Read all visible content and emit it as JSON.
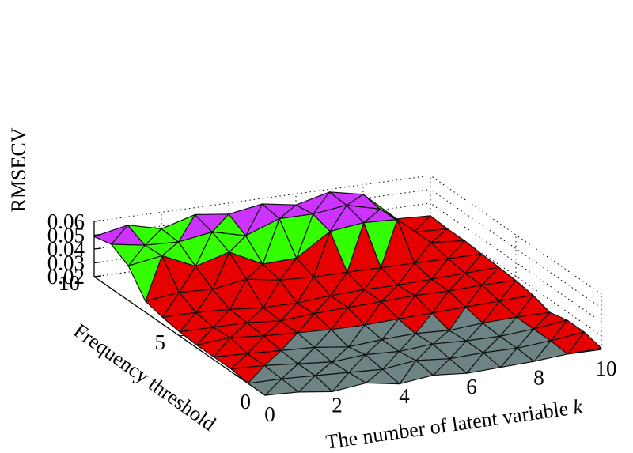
{
  "chart_data": {
    "type": "surface3d",
    "title": "",
    "xlabel": "The number of latent variable",
    "xlabel_var": "k",
    "ylabel": "Frequency threshold",
    "zlabel": "RMSECV",
    "x_ticks": [
      "0",
      "2",
      "4",
      "6",
      "8",
      "10"
    ],
    "y_ticks": [
      "0",
      "5",
      "10"
    ],
    "z_ticks": [
      "0.02",
      "0.03",
      "0.04",
      "0.05",
      "0.06"
    ],
    "x_range": [
      0,
      10
    ],
    "y_range": [
      0,
      10
    ],
    "z_range": [
      0.02,
      0.06
    ],
    "grid": true,
    "colors": {
      "face_above_low": "#e60000",
      "face_above_high": "#33ff00",
      "face_above_peak": "#cc33ff",
      "face_below": "#6e8484",
      "edge": "#111111"
    },
    "x": [
      0,
      1,
      2,
      3,
      4,
      5,
      6,
      7,
      8,
      9,
      10
    ],
    "y": [
      0,
      1,
      2,
      3,
      4,
      5,
      6,
      7,
      8,
      9,
      10
    ],
    "z": [
      [
        0.02,
        0.019,
        0.016,
        0.019,
        0.015,
        0.018,
        0.016,
        0.017,
        0.018,
        0.02,
        0.021
      ],
      [
        0.02,
        0.02,
        0.019,
        0.018,
        0.017,
        0.02,
        0.018,
        0.019,
        0.019,
        0.021,
        0.024
      ],
      [
        0.022,
        0.021,
        0.019,
        0.017,
        0.019,
        0.018,
        0.02,
        0.019,
        0.019,
        0.021,
        0.024
      ],
      [
        0.022,
        0.021,
        0.02,
        0.019,
        0.016,
        0.018,
        0.019,
        0.018,
        0.02,
        0.021,
        0.021
      ],
      [
        0.022,
        0.024,
        0.022,
        0.021,
        0.02,
        0.02,
        0.021,
        0.022,
        0.023,
        0.024,
        0.025
      ],
      [
        0.023,
        0.023,
        0.023,
        0.021,
        0.023,
        0.024,
        0.025,
        0.026,
        0.026,
        0.027,
        0.027
      ],
      [
        0.025,
        0.025,
        0.024,
        0.022,
        0.022,
        0.024,
        0.025,
        0.025,
        0.026,
        0.027,
        0.028
      ],
      [
        0.028,
        0.031,
        0.03,
        0.034,
        0.03,
        0.029,
        0.029,
        0.029,
        0.029,
        0.029,
        0.029
      ],
      [
        0.045,
        0.049,
        0.038,
        0.045,
        0.033,
        0.034,
        0.05,
        0.053,
        0.052,
        0.032,
        0.03
      ],
      [
        0.052,
        0.048,
        0.047,
        0.051,
        0.045,
        0.054,
        0.054,
        0.057,
        0.051,
        0.031,
        0.03
      ],
      [
        0.049,
        0.054,
        0.048,
        0.055,
        0.052,
        0.056,
        0.052,
        0.058,
        0.053,
        0.032,
        0.031
      ]
    ]
  }
}
